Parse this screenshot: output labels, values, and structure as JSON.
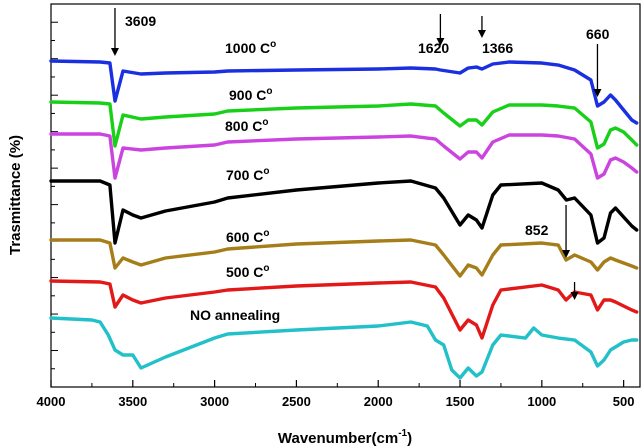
{
  "chart_data": {
    "type": "line",
    "title": "",
    "xlabel": "Wavenumber(cm",
    "xlabel_sup": "-1",
    "xlabel_close": ")",
    "ylabel": "Trasmittance (%)",
    "xlim": [
      4000,
      400
    ],
    "xticks": [
      "4000",
      "3500",
      "3000",
      "2500",
      "2000",
      "1500",
      "1000",
      "500"
    ],
    "y_ticks_labeled": false,
    "series": [
      {
        "name": "1000 C°",
        "label_temp": "1000 C",
        "color": "#1a2fe0",
        "points": [
          [
            4000,
            61
          ],
          [
            3700,
            62
          ],
          [
            3640,
            63
          ],
          [
            3609,
            101
          ],
          [
            3560,
            71
          ],
          [
            3450,
            74
          ],
          [
            3300,
            73
          ],
          [
            3000,
            72
          ],
          [
            2920,
            71
          ],
          [
            2500,
            70
          ],
          [
            2000,
            69
          ],
          [
            1800,
            68
          ],
          [
            1650,
            69
          ],
          [
            1620,
            70
          ],
          [
            1500,
            73
          ],
          [
            1450,
            68
          ],
          [
            1400,
            67
          ],
          [
            1366,
            69
          ],
          [
            1300,
            64
          ],
          [
            1200,
            62
          ],
          [
            1000,
            63
          ],
          [
            900,
            65
          ],
          [
            800,
            70
          ],
          [
            700,
            80
          ],
          [
            660,
            106
          ],
          [
            620,
            102
          ],
          [
            580,
            95
          ],
          [
            550,
            100
          ],
          [
            500,
            110
          ],
          [
            450,
            120
          ],
          [
            420,
            123
          ]
        ]
      },
      {
        "name": "900 C°",
        "label_temp": "900 C",
        "color": "#19d019",
        "points": [
          [
            4000,
            102
          ],
          [
            3700,
            103
          ],
          [
            3640,
            104
          ],
          [
            3609,
            146
          ],
          [
            3560,
            115
          ],
          [
            3450,
            119
          ],
          [
            3300,
            117
          ],
          [
            3000,
            114
          ],
          [
            2920,
            111
          ],
          [
            2500,
            108
          ],
          [
            2000,
            106
          ],
          [
            1800,
            104
          ],
          [
            1650,
            106
          ],
          [
            1600,
            113
          ],
          [
            1500,
            126
          ],
          [
            1450,
            120
          ],
          [
            1400,
            120
          ],
          [
            1366,
            125
          ],
          [
            1300,
            112
          ],
          [
            1200,
            105
          ],
          [
            1000,
            105
          ],
          [
            900,
            106
          ],
          [
            800,
            108
          ],
          [
            700,
            122
          ],
          [
            660,
            148
          ],
          [
            620,
            144
          ],
          [
            580,
            130
          ],
          [
            550,
            128
          ],
          [
            500,
            132
          ],
          [
            450,
            140
          ],
          [
            420,
            145
          ]
        ]
      },
      {
        "name": "800 C°",
        "label_temp": "800 C",
        "color": "#cc44e0",
        "points": [
          [
            4000,
            134
          ],
          [
            3700,
            134
          ],
          [
            3640,
            136
          ],
          [
            3609,
            178
          ],
          [
            3560,
            148
          ],
          [
            3450,
            150
          ],
          [
            3300,
            148
          ],
          [
            3000,
            145
          ],
          [
            2920,
            142
          ],
          [
            2500,
            139
          ],
          [
            2000,
            137
          ],
          [
            1800,
            136
          ],
          [
            1650,
            139
          ],
          [
            1600,
            146
          ],
          [
            1500,
            159
          ],
          [
            1450,
            152
          ],
          [
            1400,
            152
          ],
          [
            1366,
            158
          ],
          [
            1300,
            142
          ],
          [
            1200,
            135
          ],
          [
            1000,
            135
          ],
          [
            900,
            136
          ],
          [
            800,
            139
          ],
          [
            700,
            154
          ],
          [
            660,
            178
          ],
          [
            620,
            174
          ],
          [
            580,
            160
          ],
          [
            550,
            158
          ],
          [
            500,
            162
          ],
          [
            450,
            168
          ],
          [
            420,
            172
          ]
        ]
      },
      {
        "name": "700 C°",
        "label_temp": "700 C",
        "color": "#000000",
        "points": [
          [
            4000,
            181
          ],
          [
            3700,
            181
          ],
          [
            3640,
            185
          ],
          [
            3609,
            243
          ],
          [
            3560,
            210
          ],
          [
            3500,
            215
          ],
          [
            3450,
            218
          ],
          [
            3300,
            211
          ],
          [
            3000,
            202
          ],
          [
            2920,
            198
          ],
          [
            2500,
            190
          ],
          [
            2000,
            183
          ],
          [
            1800,
            181
          ],
          [
            1650,
            188
          ],
          [
            1600,
            198
          ],
          [
            1500,
            225
          ],
          [
            1450,
            215
          ],
          [
            1400,
            220
          ],
          [
            1366,
            228
          ],
          [
            1300,
            195
          ],
          [
            1250,
            185
          ],
          [
            1000,
            183
          ],
          [
            900,
            190
          ],
          [
            850,
            200
          ],
          [
            800,
            198
          ],
          [
            700,
            215
          ],
          [
            660,
            243
          ],
          [
            620,
            238
          ],
          [
            580,
            213
          ],
          [
            550,
            208
          ],
          [
            500,
            217
          ],
          [
            450,
            226
          ],
          [
            420,
            230
          ]
        ]
      },
      {
        "name": "600 C°",
        "label_temp": "600 C",
        "color": "#a57e1a",
        "points": [
          [
            4000,
            240
          ],
          [
            3700,
            240
          ],
          [
            3640,
            243
          ],
          [
            3609,
            268
          ],
          [
            3560,
            258
          ],
          [
            3500,
            262
          ],
          [
            3450,
            265
          ],
          [
            3300,
            258
          ],
          [
            3000,
            252
          ],
          [
            2920,
            249
          ],
          [
            2500,
            244
          ],
          [
            2000,
            241
          ],
          [
            1800,
            240
          ],
          [
            1650,
            245
          ],
          [
            1600,
            255
          ],
          [
            1500,
            276
          ],
          [
            1450,
            265
          ],
          [
            1400,
            268
          ],
          [
            1366,
            275
          ],
          [
            1300,
            255
          ],
          [
            1250,
            245
          ],
          [
            1000,
            243
          ],
          [
            900,
            245
          ],
          [
            852,
            260
          ],
          [
            800,
            255
          ],
          [
            700,
            262
          ],
          [
            660,
            270
          ],
          [
            620,
            262
          ],
          [
            580,
            258
          ],
          [
            550,
            260
          ],
          [
            500,
            263
          ],
          [
            450,
            266
          ],
          [
            420,
            268
          ]
        ]
      },
      {
        "name": "500 C°",
        "label_temp": "500 C",
        "color": "#e31919",
        "points": [
          [
            4000,
            281
          ],
          [
            3700,
            282
          ],
          [
            3640,
            284
          ],
          [
            3609,
            307
          ],
          [
            3560,
            295
          ],
          [
            3500,
            300
          ],
          [
            3450,
            303
          ],
          [
            3300,
            298
          ],
          [
            3000,
            292
          ],
          [
            2920,
            290
          ],
          [
            2500,
            286
          ],
          [
            2000,
            283
          ],
          [
            1800,
            282
          ],
          [
            1650,
            287
          ],
          [
            1600,
            298
          ],
          [
            1500,
            330
          ],
          [
            1450,
            320
          ],
          [
            1400,
            325
          ],
          [
            1366,
            338
          ],
          [
            1300,
            305
          ],
          [
            1250,
            290
          ],
          [
            1000,
            285
          ],
          [
            900,
            290
          ],
          [
            852,
            300
          ],
          [
            800,
            292
          ],
          [
            700,
            295
          ],
          [
            660,
            310
          ],
          [
            620,
            300
          ],
          [
            580,
            300
          ],
          [
            550,
            302
          ],
          [
            500,
            306
          ],
          [
            450,
            310
          ],
          [
            420,
            312
          ]
        ]
      },
      {
        "name": "NO annealing",
        "label_temp": "NO annealing",
        "color": "#22c0c8",
        "points": [
          [
            4000,
            318
          ],
          [
            3750,
            320
          ],
          [
            3700,
            322
          ],
          [
            3650,
            335
          ],
          [
            3609,
            350
          ],
          [
            3560,
            355
          ],
          [
            3500,
            355
          ],
          [
            3450,
            368
          ],
          [
            3300,
            357
          ],
          [
            3000,
            338
          ],
          [
            2920,
            334
          ],
          [
            2500,
            330
          ],
          [
            2000,
            326
          ],
          [
            1800,
            322
          ],
          [
            1700,
            326
          ],
          [
            1650,
            340
          ],
          [
            1600,
            345
          ],
          [
            1550,
            370
          ],
          [
            1500,
            378
          ],
          [
            1450,
            368
          ],
          [
            1400,
            376
          ],
          [
            1366,
            372
          ],
          [
            1300,
            345
          ],
          [
            1250,
            335
          ],
          [
            1100,
            338
          ],
          [
            1050,
            328
          ],
          [
            1000,
            335
          ],
          [
            900,
            338
          ],
          [
            800,
            340
          ],
          [
            700,
            352
          ],
          [
            660,
            366
          ],
          [
            620,
            360
          ],
          [
            580,
            350
          ],
          [
            550,
            347
          ],
          [
            500,
            342
          ],
          [
            450,
            340
          ],
          [
            420,
            340
          ]
        ]
      }
    ],
    "annotations": [
      {
        "text": "3609",
        "x": 3609
      },
      {
        "text": "1620",
        "x": 1620
      },
      {
        "text": "1366",
        "x": 1366
      },
      {
        "text": "660",
        "x": 660
      },
      {
        "text": "852",
        "x": 852
      }
    ]
  }
}
